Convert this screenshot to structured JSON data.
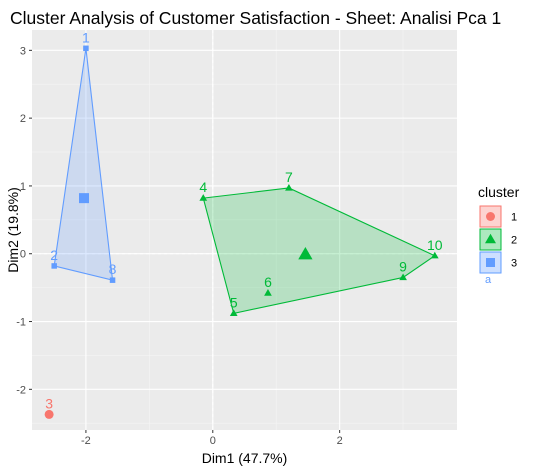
{
  "chart_data": {
    "type": "scatter",
    "title": "Cluster Analysis of Customer Satisfaction - Sheet: Analisi Pca 1",
    "xlabel": "Dim1 (47.7%)",
    "ylabel": "Dim2 (19.8%)",
    "xlim": [
      -2.85,
      3.85
    ],
    "ylim": [
      -2.6,
      3.3
    ],
    "xticks": [
      -2,
      0,
      2
    ],
    "yticks": [
      -2,
      -1,
      0,
      1,
      2,
      3
    ],
    "grid": true,
    "legend": {
      "title": "cluster",
      "position": "right",
      "entries": [
        "1",
        "2",
        "3"
      ],
      "overlap_text": "a"
    },
    "clusters": [
      {
        "name": "1",
        "color": "#f8766d",
        "marker": "circle",
        "points": [
          {
            "label": "3",
            "x": -2.58,
            "y": -2.37
          }
        ],
        "hull": [],
        "centroid": null
      },
      {
        "name": "2",
        "color": "#00ba38",
        "marker": "triangle",
        "points": [
          {
            "label": "4",
            "x": -0.15,
            "y": 0.82
          },
          {
            "label": "5",
            "x": 0.33,
            "y": -0.88
          },
          {
            "label": "6",
            "x": 0.87,
            "y": -0.58
          },
          {
            "label": "7",
            "x": 1.2,
            "y": 0.97
          },
          {
            "label": "9",
            "x": 3.0,
            "y": -0.35
          },
          {
            "label": "10",
            "x": 3.5,
            "y": -0.03
          }
        ],
        "hull": [
          "4",
          "7",
          "10",
          "9",
          "5"
        ],
        "centroid": {
          "x": 1.46,
          "y": -0.01
        }
      },
      {
        "name": "3",
        "color": "#619cff",
        "marker": "square",
        "points": [
          {
            "label": "1",
            "x": -2.0,
            "y": 3.03
          },
          {
            "label": "2",
            "x": -2.5,
            "y": -0.18
          },
          {
            "label": "8",
            "x": -1.58,
            "y": -0.39
          }
        ],
        "hull": [
          "1",
          "8",
          "2"
        ],
        "centroid": {
          "x": -2.03,
          "y": 0.82
        }
      }
    ]
  }
}
